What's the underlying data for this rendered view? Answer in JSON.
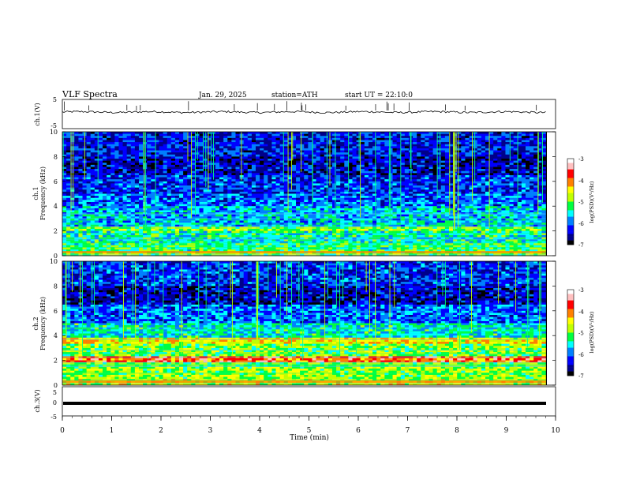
{
  "header": {
    "title": "VLF Spectra",
    "date": "Jan. 29, 2025",
    "station": "station=ATH",
    "start": "start UT =  22:10:0"
  },
  "chart_data": [
    {
      "type": "line",
      "panel": "ch1-waveform",
      "ylabel": "ch.1(V)",
      "yticks": [
        "5",
        "-5"
      ],
      "ylim": [
        -5,
        5
      ],
      "xlim": [
        0,
        10
      ],
      "series": [
        {
          "approx_level": 0,
          "values_min": [
            0,
            0.5,
            1,
            1.5,
            2,
            2.5,
            3,
            3.5,
            4,
            4.5,
            5,
            5.5,
            6,
            6.5,
            7,
            7.5,
            8,
            8.5,
            9,
            9.5,
            9.8
          ]
        }
      ]
    },
    {
      "type": "heatmap",
      "panel": "ch1-spectrogram",
      "ylabel": "ch.1\nFrequency (kHz)",
      "ylabel_line1": "ch.1",
      "ylabel_line2": "Frequency (kHz)",
      "yticks": [
        "0",
        "2",
        "4",
        "6",
        "8",
        "10"
      ],
      "ylim": [
        0,
        10
      ],
      "xlim": [
        0,
        9.8
      ],
      "colorbar": {
        "label": "log(PSD)(V²/Hz)",
        "ticks": [
          "-3",
          "-4",
          "-5",
          "-6",
          "-7"
        ],
        "range": [
          -7,
          -3
        ]
      },
      "bands_khz_to_log": [
        [
          0,
          0.3,
          -5.0
        ],
        [
          0.3,
          1.0,
          -5.2
        ],
        [
          1.0,
          2.0,
          -5.4
        ],
        [
          2.0,
          2.3,
          -4.9
        ],
        [
          2.3,
          4.0,
          -5.7
        ],
        [
          4.0,
          5.0,
          -6.0
        ],
        [
          5.0,
          6.5,
          -6.2
        ],
        [
          6.5,
          8.0,
          -6.5
        ],
        [
          8.0,
          10.0,
          -6.3
        ]
      ]
    },
    {
      "type": "heatmap",
      "panel": "ch2-spectrogram",
      "ylabel": "ch.2\nFrequency (kHz)",
      "ylabel_line1": "ch.2",
      "ylabel_line2": "Frequency (kHz)",
      "yticks": [
        "0",
        "2",
        "4",
        "6",
        "8",
        "10"
      ],
      "ylim": [
        0,
        10
      ],
      "xlim": [
        0,
        9.8
      ],
      "colorbar": {
        "label": "log(PSD)(V²/Hz)",
        "ticks": [
          "-3",
          "-4",
          "-5",
          "-6",
          "-7"
        ],
        "range": [
          -7,
          -3
        ]
      },
      "bands_khz_to_log": [
        [
          0,
          0.5,
          -4.8
        ],
        [
          0.5,
          1.8,
          -5.0
        ],
        [
          1.8,
          2.3,
          -4.0
        ],
        [
          2.3,
          3.3,
          -5.1
        ],
        [
          3.3,
          3.8,
          -4.6
        ],
        [
          3.8,
          5.0,
          -5.6
        ],
        [
          5.0,
          6.5,
          -6.1
        ],
        [
          6.5,
          8.0,
          -6.6
        ],
        [
          8.0,
          10.0,
          -6.3
        ]
      ]
    },
    {
      "type": "line",
      "panel": "ch3-waveform",
      "ylabel": "ch.3(V)",
      "yticks": [
        "5",
        "0",
        "-5"
      ],
      "ylim": [
        -5,
        5
      ],
      "xlim": [
        0,
        10
      ],
      "series": [
        {
          "approx_level": -0.5
        }
      ]
    }
  ],
  "x_axis": {
    "label": "Time (min)",
    "ticks": [
      "0",
      "1",
      "2",
      "3",
      "4",
      "5",
      "6",
      "7",
      "8",
      "9",
      "10"
    ]
  },
  "colors": {
    "map": [
      "#000000",
      "#00008b",
      "#0000ff",
      "#0080ff",
      "#00ffff",
      "#00ff40",
      "#c0ff00",
      "#ffff00",
      "#ff8000",
      "#ff0000",
      "#ffc0c0",
      "#ffffff"
    ]
  }
}
